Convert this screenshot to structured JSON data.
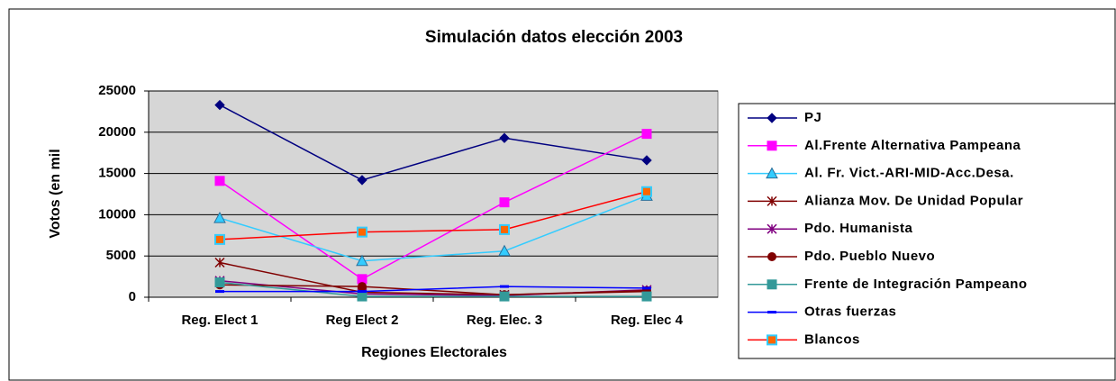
{
  "chart_data": {
    "type": "line",
    "title": "Simulación datos elección 2003",
    "x_label": "Regiones Electorales",
    "y_label": "Votos (en mil",
    "categories": [
      "Reg. Elect 1",
      "Reg Elect 2",
      "Reg. Elec. 3",
      "Reg. Elec 4"
    ],
    "ylim": [
      0,
      25000
    ],
    "yticks": [
      0,
      5000,
      10000,
      15000,
      20000,
      25000
    ],
    "grid": true,
    "series": [
      {
        "name": "PJ",
        "color": "#000080",
        "marker": "diamond",
        "values": [
          23300,
          14200,
          19300,
          16600
        ]
      },
      {
        "name": "Al.Frente Alternativa Pampeana",
        "color": "#ff00ff",
        "marker": "square",
        "values": [
          14100,
          2200,
          11500,
          19800
        ]
      },
      {
        "name": "Al. Fr. Vict.-ARI-MID-Acc.Desa.",
        "color": "#33ccff",
        "marker": "triangle",
        "values": [
          9600,
          4400,
          5600,
          12300
        ]
      },
      {
        "name": "Alianza Mov. De Unidad Popular",
        "color": "#800000",
        "marker": "star",
        "values": [
          4200,
          600,
          300,
          700
        ]
      },
      {
        "name": "Pdo. Humanista",
        "color": "#800080",
        "marker": "star",
        "values": [
          2000,
          400,
          200,
          900
        ]
      },
      {
        "name": "Pdo. Pueblo Nuevo",
        "color": "#800000",
        "marker": "circle",
        "values": [
          1500,
          1300,
          300,
          800
        ]
      },
      {
        "name": "Frente de Integración Pampeano",
        "color": "#339999",
        "marker": "square",
        "values": [
          1800,
          100,
          100,
          100
        ]
      },
      {
        "name": "Otras fuerzas",
        "color": "#0000ff",
        "marker": "dash",
        "values": [
          700,
          700,
          1300,
          1100
        ]
      },
      {
        "name": "Blancos",
        "color": "#ff0000",
        "marker": "square-orange",
        "values": [
          7000,
          7900,
          8200,
          12800
        ]
      }
    ]
  }
}
